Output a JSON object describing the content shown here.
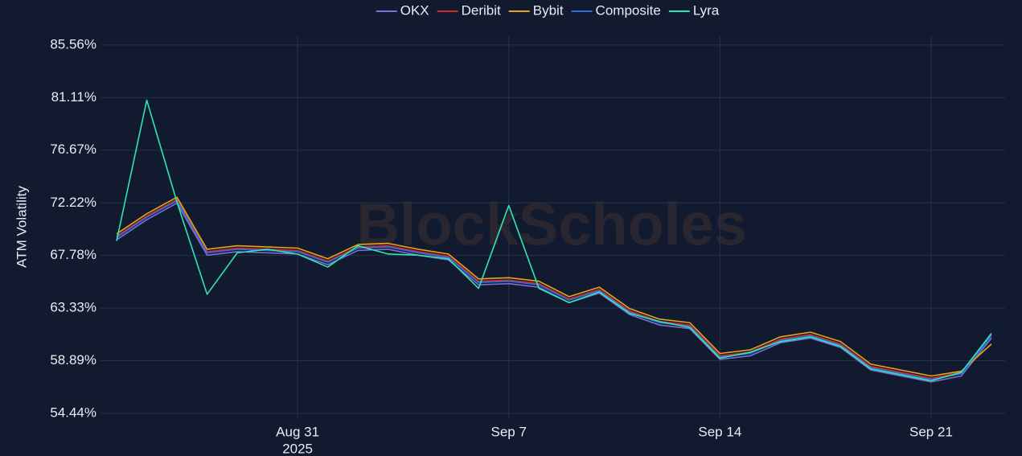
{
  "chart_data": {
    "type": "line",
    "y_axis_label": "ATM Volatility",
    "watermark": "BlockScholes",
    "x": [
      "2025-08-25",
      "2025-08-26",
      "2025-08-27",
      "2025-08-28",
      "2025-08-29",
      "2025-08-30",
      "2025-08-31",
      "2025-09-01",
      "2025-09-02",
      "2025-09-03",
      "2025-09-04",
      "2025-09-05",
      "2025-09-06",
      "2025-09-07",
      "2025-09-08",
      "2025-09-09",
      "2025-09-10",
      "2025-09-11",
      "2025-09-12",
      "2025-09-13",
      "2025-09-14",
      "2025-09-15",
      "2025-09-16",
      "2025-09-17",
      "2025-09-18",
      "2025-09-19",
      "2025-09-20",
      "2025-09-21",
      "2025-09-22",
      "2025-09-23"
    ],
    "xlim": [
      "2025-08-25",
      "2025-09-23"
    ],
    "xticks": [
      {
        "value": "2025-08-31",
        "label": "Aug 31"
      },
      {
        "value": "2025-09-07",
        "label": "Sep 7"
      },
      {
        "value": "2025-09-14",
        "label": "Sep 14"
      },
      {
        "value": "2025-09-21",
        "label": "Sep 21"
      }
    ],
    "x_year": "2025",
    "ylim": [
      54.44,
      86.3
    ],
    "yticks": [
      {
        "value": 54.44,
        "label": "54.44%"
      },
      {
        "value": 58.89,
        "label": "58.89%"
      },
      {
        "value": 63.33,
        "label": "63.33%"
      },
      {
        "value": 67.78,
        "label": "67.78%"
      },
      {
        "value": 72.22,
        "label": "72.22%"
      },
      {
        "value": 76.67,
        "label": "76.67%"
      },
      {
        "value": 81.11,
        "label": "81.11%"
      },
      {
        "value": 85.56,
        "label": "85.56%"
      }
    ],
    "grid": true,
    "legend": "top",
    "series": [
      {
        "name": "OKX",
        "color": "#7b6fd6",
        "values": [
          69.1,
          70.8,
          72.2,
          67.8,
          68.1,
          68.0,
          67.9,
          67.0,
          68.2,
          68.3,
          67.8,
          67.4,
          65.3,
          65.4,
          65.1,
          63.8,
          64.6,
          62.8,
          61.9,
          61.6,
          59.0,
          59.3,
          60.4,
          60.8,
          60.0,
          58.1,
          57.6,
          57.1,
          57.6,
          60.8
        ]
      },
      {
        "name": "Deribit",
        "color": "#d62728",
        "values": [
          69.4,
          71.1,
          72.5,
          68.1,
          68.4,
          68.3,
          68.2,
          67.3,
          68.5,
          68.6,
          68.1,
          67.7,
          65.6,
          65.7,
          65.4,
          64.1,
          64.9,
          63.1,
          62.2,
          61.9,
          59.3,
          59.6,
          60.7,
          61.1,
          60.3,
          58.4,
          57.9,
          57.4,
          57.9,
          61.1
        ]
      },
      {
        "name": "Bybit",
        "color": "#e8a317",
        "values": [
          69.6,
          71.3,
          72.7,
          68.3,
          68.6,
          68.5,
          68.4,
          67.5,
          68.7,
          68.8,
          68.3,
          67.9,
          65.8,
          65.9,
          65.6,
          64.3,
          65.1,
          63.3,
          62.4,
          62.1,
          59.5,
          59.8,
          60.9,
          61.3,
          60.5,
          58.6,
          58.1,
          57.6,
          58.0,
          60.3
        ]
      },
      {
        "name": "Composite",
        "color": "#2f6fdf",
        "values": [
          69.3,
          71.0,
          72.4,
          68.0,
          68.3,
          68.2,
          68.1,
          67.2,
          68.4,
          68.5,
          68.0,
          67.6,
          65.5,
          65.6,
          65.3,
          64.0,
          64.8,
          63.0,
          62.1,
          61.8,
          59.2,
          59.5,
          60.6,
          61.0,
          60.2,
          58.3,
          57.8,
          57.3,
          57.8,
          61.0
        ]
      },
      {
        "name": "Lyra",
        "color": "#2ee6b0",
        "values": [
          69.0,
          80.9,
          72.3,
          64.5,
          68.0,
          68.3,
          67.9,
          66.8,
          68.6,
          67.9,
          67.8,
          67.5,
          65.0,
          72.0,
          65.0,
          63.8,
          64.7,
          62.9,
          62.2,
          61.7,
          59.1,
          59.6,
          60.5,
          60.9,
          60.1,
          58.2,
          57.7,
          57.2,
          57.9,
          61.2
        ]
      }
    ]
  }
}
